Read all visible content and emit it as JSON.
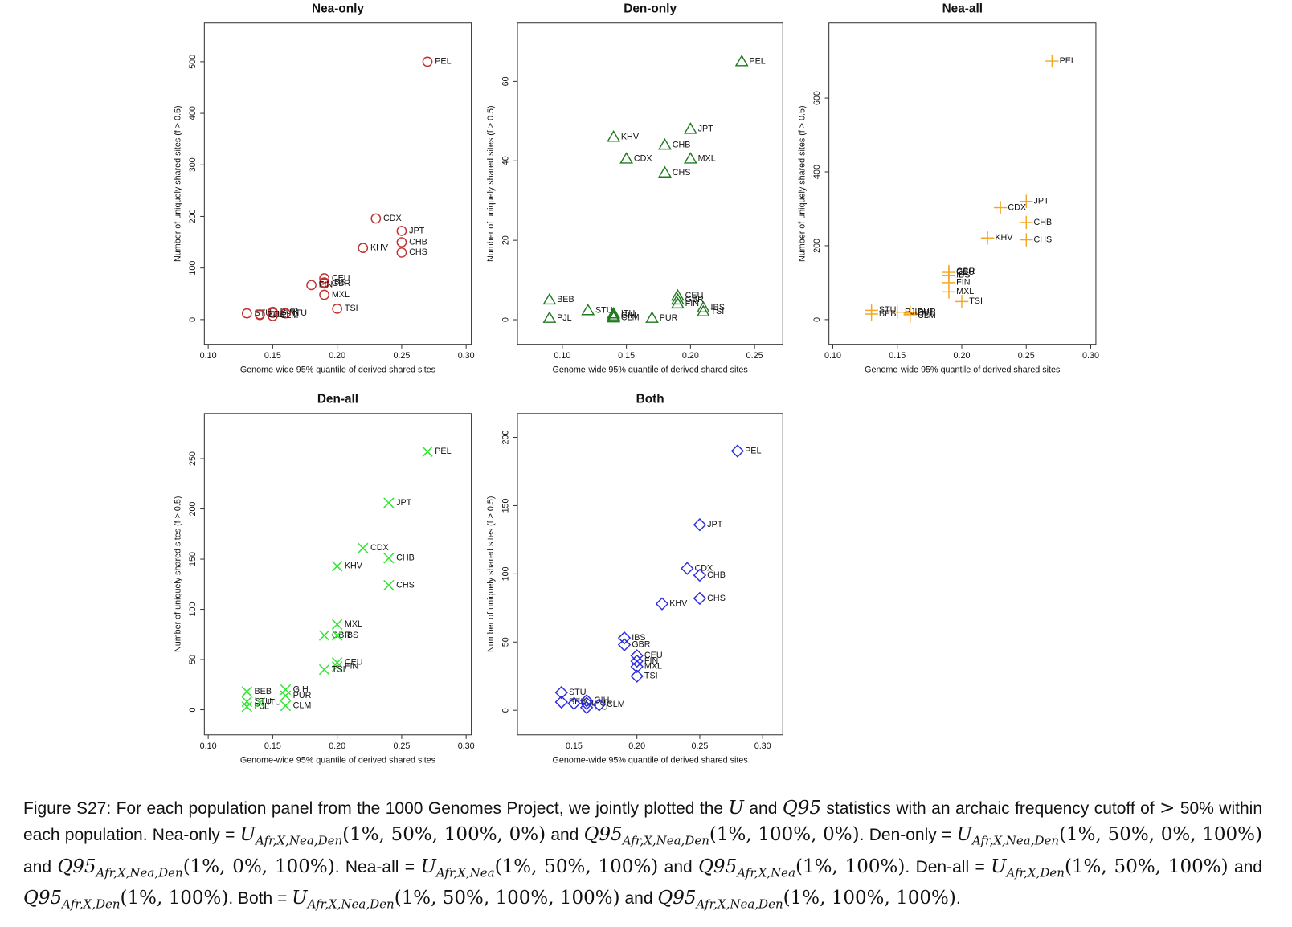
{
  "chart_data": [
    {
      "type": "scatter",
      "title": "Nea-only",
      "marker": "circle",
      "color": "#c0302f",
      "xlabel": "Genome-wide 95% quantile of derived shared sites",
      "ylabel": "Number of uniquely shared sites (f > 0.5)",
      "labels": [
        "PEL",
        "CDX",
        "JPT",
        "CHB",
        "CHS",
        "KHV",
        "CEU",
        "GBR",
        "IBS",
        "FIN",
        "MXL",
        "TSI",
        "PUR",
        "GIH",
        "ITU",
        "STU",
        "BEB",
        "PJL",
        "CLM"
      ],
      "x": [
        0.27,
        0.23,
        0.25,
        0.25,
        0.25,
        0.22,
        0.19,
        0.19,
        0.19,
        0.18,
        0.19,
        0.2,
        0.15,
        0.15,
        0.16,
        0.13,
        0.14,
        0.14,
        0.15
      ],
      "y": [
        500,
        196,
        172,
        150,
        130,
        139,
        80,
        70,
        72,
        67,
        48,
        21,
        15,
        13,
        12,
        12,
        9,
        10,
        7
      ],
      "xlim": [
        0.097,
        0.304
      ],
      "ylim": [
        -48,
        575
      ],
      "xticks": [
        {
          "value": 0.1,
          "label": "0.10"
        },
        0.15,
        {
          "value": 0.2,
          "label": "0.20"
        },
        0.25,
        {
          "value": 0.3,
          "label": "0.30"
        }
      ],
      "yticks": [
        0,
        100,
        200,
        300,
        400,
        500
      ]
    },
    {
      "type": "scatter",
      "title": "Den-only",
      "marker": "triangle",
      "color": "#1f7a1f",
      "xlabel": "Genome-wide 95% quantile of derived shared sites",
      "ylabel": "Number of uniquely shared sites (f > 0.5)",
      "labels": [
        "PEL",
        "JPT",
        "KHV",
        "CHB",
        "MXL",
        "CDX",
        "CHS",
        "BEB",
        "STU",
        "ITU",
        "GIH",
        "CLM",
        "PJL",
        "CEU",
        "GBR",
        "FIN",
        "PUR",
        "IBS",
        "TSI"
      ],
      "x": [
        0.24,
        0.2,
        0.14,
        0.18,
        0.2,
        0.15,
        0.18,
        0.09,
        0.12,
        0.14,
        0.14,
        0.14,
        0.09,
        0.19,
        0.19,
        0.19,
        0.17,
        0.21,
        0.21
      ],
      "y": [
        65,
        48,
        46,
        44,
        40.5,
        40.5,
        37,
        5,
        2.3,
        1.5,
        1,
        0.5,
        0.4,
        6,
        5,
        4,
        0.4,
        3,
        2
      ],
      "xlim": [
        0.065,
        0.272
      ],
      "ylim": [
        -6.2,
        74.7
      ],
      "xticks": [
        {
          "value": 0.1,
          "label": "0.10"
        },
        0.15,
        {
          "value": 0.2,
          "label": "0.20"
        },
        0.25
      ],
      "yticks": [
        0,
        20,
        40,
        60
      ]
    },
    {
      "type": "scatter",
      "title": "Nea-all",
      "marker": "plus",
      "color": "#f5a623",
      "xlabel": "Genome-wide 95% quantile of derived shared sites",
      "ylabel": "Number of uniquely shared sites (f > 0.5)",
      "labels": [
        "PEL",
        "JPT",
        "CDX",
        "CHB",
        "CHS",
        "KHV",
        "GBR",
        "CEU",
        "IBS",
        "FIN",
        "MXL",
        "TSI",
        "PUR",
        "GIH",
        "ITU",
        "STU",
        "BEB",
        "PJL",
        "CLM"
      ],
      "x": [
        0.27,
        0.25,
        0.23,
        0.25,
        0.25,
        0.22,
        0.19,
        0.19,
        0.19,
        0.19,
        0.19,
        0.2,
        0.16,
        0.16,
        0.16,
        0.13,
        0.13,
        0.15,
        0.16
      ],
      "y": [
        700,
        320,
        303,
        263,
        216,
        221,
        130,
        128,
        120,
        100,
        75,
        49,
        20,
        18,
        14,
        25,
        15,
        20,
        10
      ],
      "xlim": [
        0.097,
        0.304
      ],
      "ylim": [
        -67,
        803
      ],
      "xticks": [
        {
          "value": 0.1,
          "label": "0.10"
        },
        0.15,
        {
          "value": 0.2,
          "label": "0.20"
        },
        0.25,
        {
          "value": 0.3,
          "label": "0.30"
        }
      ],
      "yticks": [
        0,
        200,
        400,
        600
      ]
    },
    {
      "type": "scatter",
      "title": "Den-all",
      "marker": "x",
      "color": "#33e633",
      "xlabel": "Genome-wide 95% quantile of derived shared sites",
      "ylabel": "Number of uniquely shared sites (f > 0.5)",
      "labels": [
        "PEL",
        "JPT",
        "CDX",
        "CHB",
        "KHV",
        "CHS",
        "MXL",
        "GBR",
        "IBS",
        "CEU",
        "FIN",
        "TSI",
        "BEB",
        "STU",
        "PJL",
        "ITU",
        "GIH",
        "PUR",
        "CLM"
      ],
      "x": [
        0.27,
        0.24,
        0.22,
        0.24,
        0.2,
        0.24,
        0.2,
        0.19,
        0.2,
        0.2,
        0.2,
        0.19,
        0.13,
        0.13,
        0.13,
        0.14,
        0.16,
        0.16,
        0.16
      ],
      "y": [
        257,
        206,
        161,
        151,
        143,
        124,
        85,
        74,
        74,
        47,
        43,
        40,
        18,
        8,
        3,
        7,
        20,
        14,
        4
      ],
      "xlim": [
        0.097,
        0.304
      ],
      "ylim": [
        -25,
        295
      ],
      "xticks": [
        {
          "value": 0.1,
          "label": "0.10"
        },
        0.15,
        {
          "value": 0.2,
          "label": "0.20"
        },
        0.25,
        {
          "value": 0.3,
          "label": "0.30"
        }
      ],
      "yticks": [
        0,
        50,
        100,
        150,
        200,
        250
      ]
    },
    {
      "type": "scatter",
      "title": "Both",
      "marker": "diamond",
      "color": "#2b2be0",
      "xlabel": "Genome-wide 95% quantile of derived shared sites",
      "ylabel": "Number of uniquely shared sites (f > 0.5)",
      "labels": [
        "PEL",
        "JPT",
        "CDX",
        "CHB",
        "CHS",
        "KHV",
        "IBS",
        "GBR",
        "CEU",
        "FIN",
        "MXL",
        "TSI",
        "STU",
        "BEB",
        "PJL",
        "GIH",
        "PUR",
        "ITU",
        "CLM"
      ],
      "x": [
        0.28,
        0.25,
        0.24,
        0.25,
        0.25,
        0.22,
        0.19,
        0.19,
        0.2,
        0.2,
        0.2,
        0.2,
        0.14,
        0.14,
        0.15,
        0.16,
        0.16,
        0.16,
        0.17
      ],
      "y": [
        190,
        136,
        104,
        99,
        82,
        78,
        53,
        48,
        40,
        36,
        32,
        25,
        13,
        6,
        5,
        7,
        5,
        2,
        4
      ],
      "xlim": [
        0.105,
        0.316
      ],
      "ylim": [
        -18,
        217.5
      ],
      "xticks": [
        0.15,
        {
          "value": 0.2,
          "label": "0.20"
        },
        0.25,
        {
          "value": 0.3,
          "label": "0.30"
        }
      ],
      "yticks": [
        0,
        50,
        100,
        150,
        200
      ]
    }
  ],
  "caption": [
    "Figure S27: For each population panel from the 1000 Genomes Project, we jointly plotted the ",
    {
      "sym": "U"
    },
    " and ",
    {
      "sym": "Q95"
    },
    " statistics with an archaic frequency cutoff of ",
    {
      "sym": ">"
    },
    " 50% within each population. Nea-only = ",
    {
      "sym": "U",
      "sub": "Afr,X,Nea,Den",
      "args": "(1%, 50%, 100%, 0%)"
    },
    " and ",
    {
      "sym": "Q95",
      "sub": "Afr,X,Nea,Den",
      "args": "(1%, 100%, 0%)"
    },
    ". Den-only = ",
    {
      "sym": "U",
      "sub": "Afr,X,Nea,Den",
      "args": "(1%, 50%, 0%, 100%)"
    },
    " and ",
    {
      "sym": "Q95",
      "sub": "Afr,X,Nea,Den",
      "args": "(1%, 0%, 100%)"
    },
    ". Nea-all = ",
    {
      "sym": "U",
      "sub": "Afr,X,Nea",
      "args": "(1%, 50%, 100%)"
    },
    " and ",
    {
      "sym": "Q95",
      "sub": "Afr,X,Nea",
      "args": "(1%, 100%)"
    },
    ". Den-all = ",
    {
      "sym": "U",
      "sub": "Afr,X,Den",
      "args": "(1%, 50%, 100%)"
    },
    " and ",
    {
      "sym": "Q95",
      "sub": "Afr,X,Den",
      "args": "(1%, 100%)"
    },
    ". Both = ",
    {
      "sym": "U",
      "sub": "Afr,X,Nea,Den",
      "args": "(1%, 50%, 100%, 100%)"
    },
    " and ",
    {
      "sym": "Q95",
      "sub": "Afr,X,Nea,Den",
      "args": "(1%, 100%, 100%)"
    },
    "."
  ]
}
